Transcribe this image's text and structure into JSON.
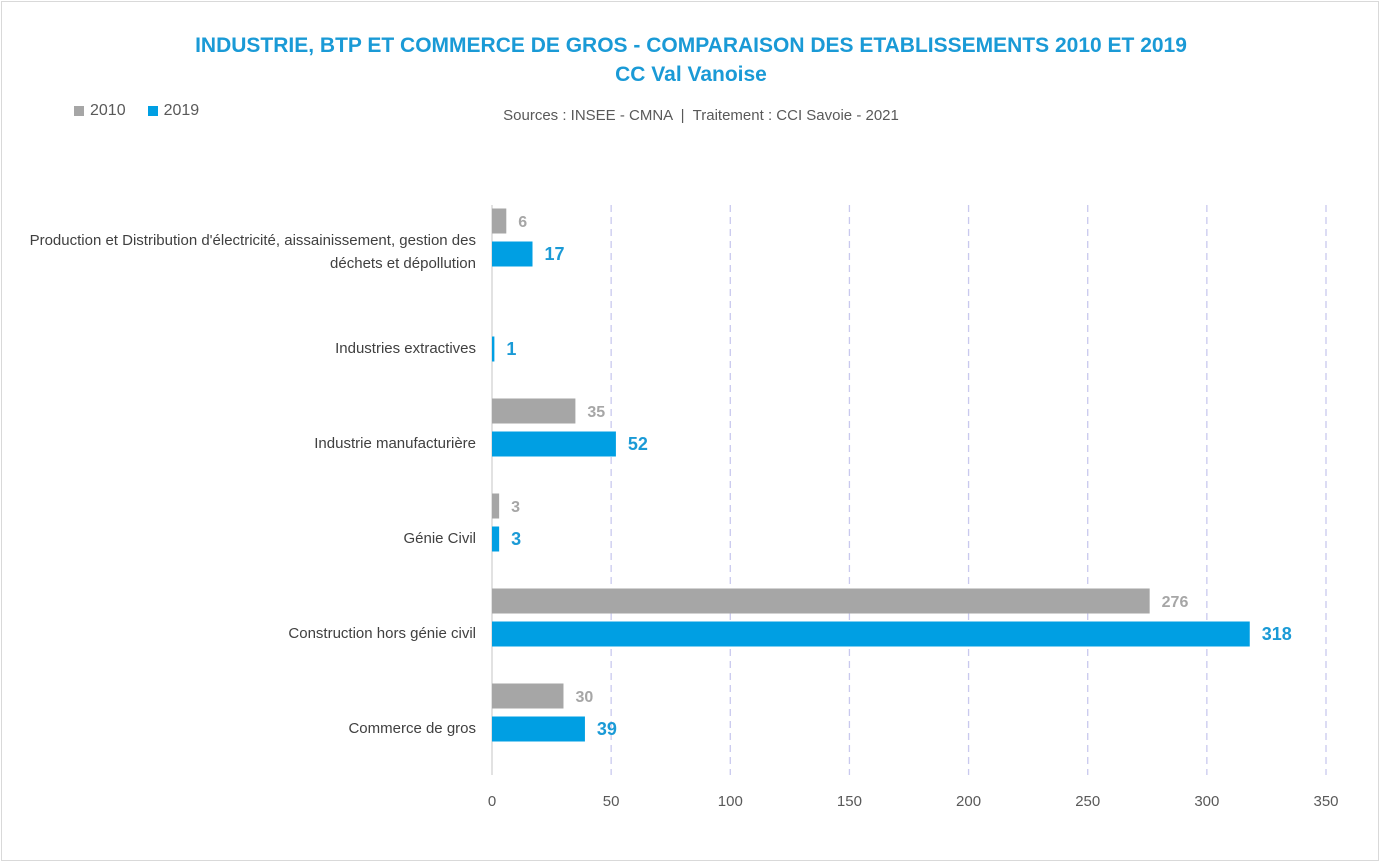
{
  "chart_data": {
    "type": "bar",
    "orientation": "horizontal",
    "title": "INDUSTRIE, BTP ET COMMERCE DE GROS - COMPARAISON DES ETABLISSEMENTS 2010 ET 2019",
    "subtitle": "CC Val Vanoise",
    "source": "Sources : INSEE - CMNA  |  Traitement : CCI Savoie - 2021",
    "categories": [
      "Production et Distribution d'électricité, aissainissement, gestion des déchets et dépollution",
      "Industries extractives",
      "Industrie manufacturière",
      "Génie Civil",
      "Construction hors génie civil",
      "Commerce de gros"
    ],
    "series": [
      {
        "name": "2010",
        "color": "#a6a6a6",
        "label_color": "#a6a6a6",
        "values": [
          6,
          null,
          35,
          3,
          276,
          30
        ]
      },
      {
        "name": "2019",
        "color": "#009fe3",
        "label_color": "#1a9ad6",
        "values": [
          17,
          1,
          52,
          3,
          318,
          39
        ]
      }
    ],
    "xlim": [
      0,
      350
    ],
    "xticks": [
      0,
      50,
      100,
      150,
      200,
      250,
      300,
      350
    ],
    "grid": "vertical dashed",
    "legend": "top-left"
  }
}
